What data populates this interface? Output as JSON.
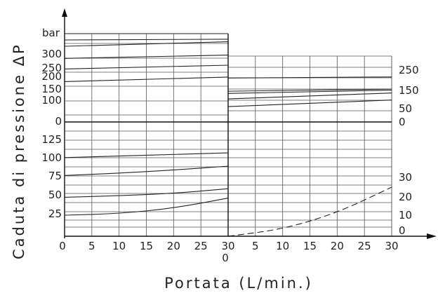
{
  "chart_data": {
    "type": "line",
    "ylabel": "Caduta di pressione ΔP",
    "xlabel": "Portata (L/min.)",
    "unit_label": "bar",
    "x_ticks_left": [
      "0",
      "5",
      "10",
      "15",
      "20",
      "25",
      "30"
    ],
    "x_ticks_right": [
      "5",
      "10",
      "15",
      "20",
      "25",
      "30"
    ],
    "x_tick_mid_below": "0",
    "upper_left_ticks": [
      "300",
      "250",
      "200",
      "150",
      "100",
      "0"
    ],
    "lower_left_ticks": [
      "125",
      "100",
      "75",
      "50",
      "25"
    ],
    "right_upper_ticks": [
      "250",
      "150",
      "50",
      "0"
    ],
    "right_lower_ticks": [
      "30",
      "20",
      "10",
      "0"
    ],
    "xlim": [
      0,
      30
    ],
    "upper_ylim": [
      0,
      350
    ],
    "lower_ylim": [
      0,
      135
    ],
    "right_upper_ylim": [
      0,
      300
    ],
    "right_lower_ylim": [
      0,
      45
    ],
    "series": [
      {
        "panel": "upper-left",
        "x": [
          0,
          30
        ],
        "y": [
          350,
          350
        ]
      },
      {
        "panel": "upper-left",
        "x": [
          0,
          30
        ],
        "y": [
          325,
          328
        ]
      },
      {
        "panel": "upper-left",
        "x": [
          0,
          30
        ],
        "y": [
          300,
          318
        ]
      },
      {
        "panel": "upper-left",
        "x": [
          0,
          30
        ],
        "y": [
          252,
          265
        ]
      },
      {
        "panel": "upper-left",
        "x": [
          0,
          30
        ],
        "y": [
          210,
          225
        ]
      },
      {
        "panel": "upper-left",
        "x": [
          0,
          30
        ],
        "y": [
          160,
          178
        ]
      },
      {
        "panel": "lower-left",
        "x": [
          0,
          10,
          20,
          30
        ],
        "y": [
          101,
          103,
          105,
          107
        ]
      },
      {
        "panel": "lower-left",
        "x": [
          0,
          10,
          20,
          30
        ],
        "y": [
          78,
          81,
          85,
          90
        ]
      },
      {
        "panel": "lower-left",
        "x": [
          0,
          10,
          20,
          30
        ],
        "y": [
          50,
          52,
          55,
          61
        ]
      },
      {
        "panel": "lower-left",
        "x": [
          0,
          10,
          20,
          30
        ],
        "y": [
          27,
          29,
          36,
          49
        ]
      },
      {
        "panel": "upper-right",
        "x": [
          0,
          30
        ],
        "y": [
          200,
          205
        ]
      },
      {
        "panel": "upper-right",
        "x": [
          0,
          30
        ],
        "y": [
          140,
          150
        ]
      },
      {
        "panel": "upper-right",
        "x": [
          0,
          30
        ],
        "y": [
          130,
          145
        ]
      },
      {
        "panel": "upper-right",
        "x": [
          0,
          30
        ],
        "y": [
          105,
          132
        ]
      },
      {
        "panel": "upper-right",
        "x": [
          0,
          30
        ],
        "y": [
          70,
          100
        ]
      },
      {
        "panel": "lower-right",
        "x": [
          0,
          10,
          20,
          30
        ],
        "y": [
          0,
          3,
          10,
          21
        ],
        "style": "dashed"
      }
    ]
  }
}
